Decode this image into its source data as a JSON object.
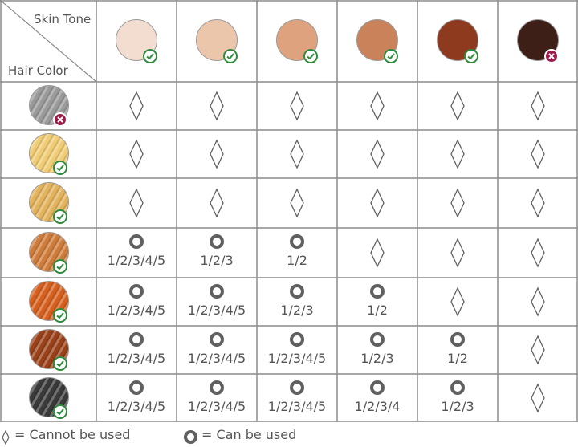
{
  "header": {
    "skin_tone_label": "Skin Tone",
    "hair_color_label": "Hair Color"
  },
  "skin_tones": [
    {
      "color": "#f3ddd0",
      "status": "check-icon"
    },
    {
      "color": "#ecc6aa",
      "status": "check-icon"
    },
    {
      "color": "#dea37e",
      "status": "check-icon"
    },
    {
      "color": "#c9825a",
      "status": "check-icon"
    },
    {
      "color": "#8e3a1f",
      "status": "check-icon"
    },
    {
      "color": "#3e1f17",
      "status": "cross-icon"
    }
  ],
  "hair_colors": [
    {
      "color": "#9a9a9a",
      "status": "cross-icon"
    },
    {
      "color": "#f0cc74",
      "status": "check-icon"
    },
    {
      "color": "#e3b35c",
      "status": "check-icon"
    },
    {
      "color": "#cf7c3a",
      "status": "check-icon"
    },
    {
      "color": "#d65f1e",
      "status": "check-icon"
    },
    {
      "color": "#9a4119",
      "status": "check-icon"
    },
    {
      "color": "#3a3a3a",
      "status": "check-icon"
    }
  ],
  "rows": [
    [
      "",
      "",
      "",
      "",
      "",
      ""
    ],
    [
      "",
      "",
      "",
      "",
      "",
      ""
    ],
    [
      "",
      "",
      "",
      "",
      "",
      ""
    ],
    [
      "1/2/3/4/5",
      "1/2/3",
      "1/2",
      "",
      "",
      ""
    ],
    [
      "1/2/3/4/5",
      "1/2/3/4/5",
      "1/2/3",
      "1/2",
      "",
      ""
    ],
    [
      "1/2/3/4/5",
      "1/2/3/4/5",
      "1/2/3/4/5",
      "1/2/3",
      "1/2",
      ""
    ],
    [
      "1/2/3/4/5",
      "1/2/3/4/5",
      "1/2/3/4/5",
      "1/2/3/4",
      "1/2/3",
      ""
    ]
  ],
  "legend": {
    "cannot_label": "= Cannot be used",
    "can_label": "= Can be used"
  },
  "colors": {
    "grid_line": "#8c8c8c",
    "check": "#2e8b3a",
    "cross": "#9b1b4b",
    "ring": "#606060"
  }
}
